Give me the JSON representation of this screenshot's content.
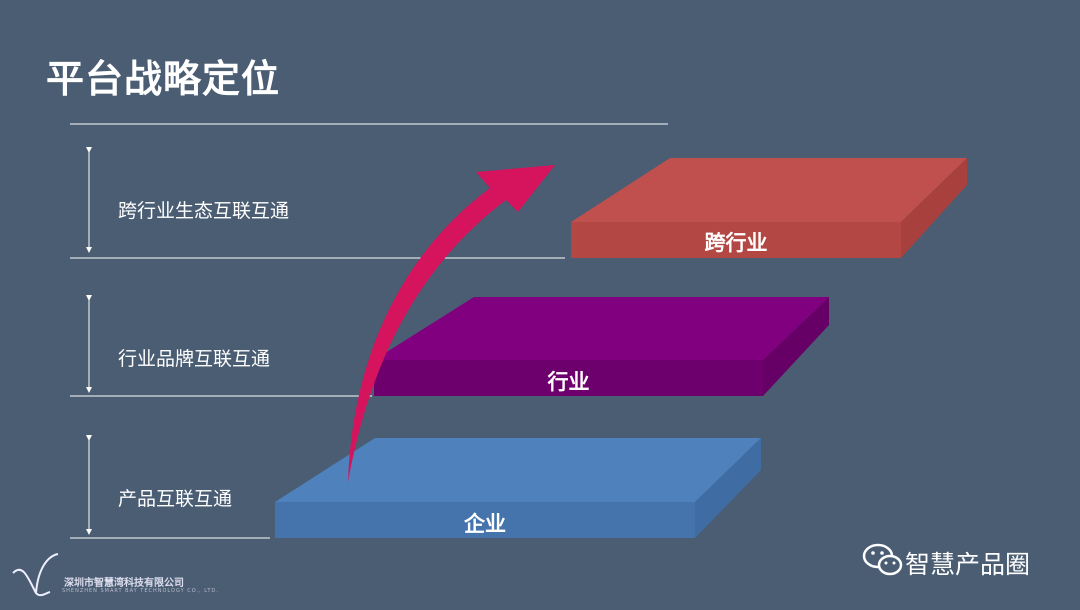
{
  "title": "平台战略定位",
  "levels": [
    {
      "label": "跨行业生态互联互通",
      "slab": "跨行业",
      "color": "#c0504d"
    },
    {
      "label": "行业品牌互联互通",
      "slab": "行业",
      "color": "#800080"
    },
    {
      "label": "产品互联互通",
      "slab": "企业",
      "color": "#4f81bd"
    }
  ],
  "arrow_color": "#d6135d",
  "brand": "智慧产品圈",
  "company": {
    "cn": "深圳市智慧湾科技有限公司",
    "en": "SHENZHEN SMART BAY TECHNOLOGY CO., LTD."
  }
}
